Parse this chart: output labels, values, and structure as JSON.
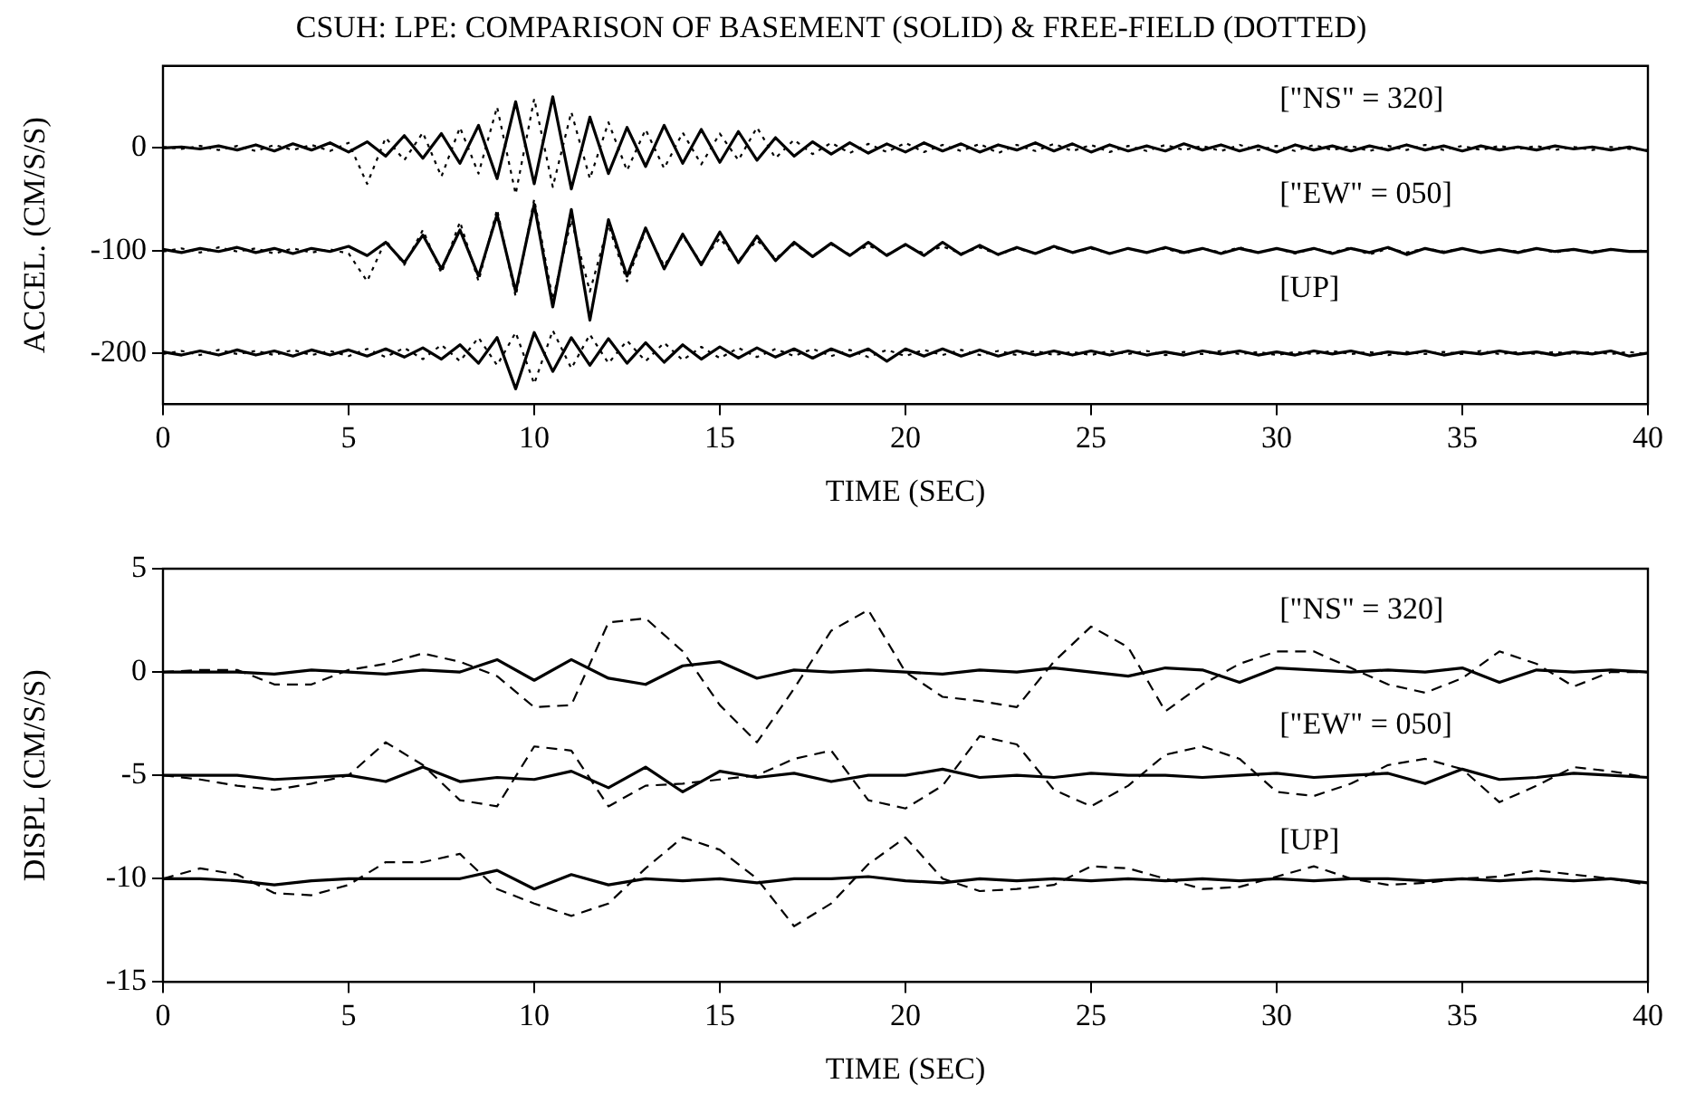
{
  "chart_data": [
    {
      "type": "line",
      "title": "CSUH: LPE: COMPARISON OF BASEMENT (SOLID) & FREE-FIELD (DOTTED)",
      "xlabel": "TIME (SEC)",
      "ylabel": "ACCEL. (CM/S/S)",
      "xlim": [
        0,
        40
      ],
      "xticks": [
        0,
        5,
        10,
        15,
        20,
        25,
        30,
        35,
        40
      ],
      "ylim": [
        -250,
        80
      ],
      "yticks": [
        -200,
        -100,
        0
      ],
      "marker": "none",
      "legend": false,
      "x": [
        0,
        0.5,
        1,
        1.5,
        2,
        2.5,
        3,
        3.5,
        4,
        4.5,
        5,
        5.5,
        6,
        6.5,
        7,
        7.5,
        8,
        8.5,
        9,
        9.5,
        10,
        10.5,
        11,
        11.5,
        12,
        12.5,
        13,
        13.5,
        14,
        14.5,
        15,
        15.5,
        16,
        16.5,
        17,
        17.5,
        18,
        18.5,
        19,
        19.5,
        20,
        20.5,
        21,
        21.5,
        22,
        22.5,
        23,
        23.5,
        24,
        24.5,
        25,
        25.5,
        26,
        26.5,
        27,
        27.5,
        28,
        28.5,
        29,
        29.5,
        30,
        30.5,
        31,
        31.5,
        32,
        32.5,
        33,
        33.5,
        34,
        34.5,
        35,
        35.5,
        36,
        36.5,
        37,
        37.5,
        38,
        38.5,
        39,
        39.5,
        40
      ],
      "series": [
        {
          "color": "#000000",
          "line_style": "solid",
          "values": [
            0,
            1,
            -1,
            2,
            -2,
            3,
            -3,
            4,
            -2,
            5,
            -4,
            6,
            -8,
            12,
            -10,
            14,
            -15,
            22,
            -30,
            45,
            -35,
            50,
            -40,
            30,
            -25,
            20,
            -18,
            22,
            -15,
            18,
            -14,
            16,
            -12,
            10,
            -8,
            6,
            -6,
            5,
            -5,
            4,
            -4,
            5,
            -3,
            4,
            -4,
            3,
            -2,
            5,
            -3,
            4,
            -4,
            3,
            -3,
            2,
            -3,
            4,
            -2,
            3,
            -3,
            2,
            -4,
            3,
            -2,
            2,
            -3,
            2,
            -2,
            3,
            -2,
            2,
            -3,
            2,
            -2,
            1,
            -2,
            2,
            -1,
            1,
            -2,
            1,
            -3
          ]
        },
        {
          "color": "#000000",
          "line_style": "dotted",
          "values": [
            1,
            -1,
            2,
            -2,
            2,
            -3,
            3,
            -2,
            3,
            -3,
            5,
            -35,
            10,
            -12,
            15,
            -28,
            20,
            -25,
            40,
            -45,
            48,
            -38,
            35,
            -30,
            25,
            -22,
            18,
            -20,
            15,
            -16,
            14,
            -12,
            20,
            -10,
            8,
            -6,
            5,
            -5,
            4,
            -4,
            5,
            -4,
            3,
            -3,
            4,
            -5,
            3,
            -3,
            4,
            -3,
            3,
            -4,
            2,
            -3,
            3,
            -2,
            2,
            -3,
            3,
            -2,
            2,
            -3,
            3,
            -2,
            2,
            -3,
            2,
            -2,
            3,
            -2,
            2,
            -2,
            2,
            -1,
            2,
            -2,
            1,
            -2,
            1,
            -1,
            -2
          ]
        },
        {
          "color": "#000000",
          "line_style": "solid",
          "values": [
            -99,
            -102,
            -98,
            -101,
            -97,
            -102,
            -98,
            -103,
            -98,
            -101,
            -96,
            -105,
            -92,
            -112,
            -85,
            -118,
            -80,
            -125,
            -65,
            -140,
            -55,
            -155,
            -60,
            -168,
            -70,
            -125,
            -78,
            -118,
            -84,
            -114,
            -82,
            -112,
            -86,
            -110,
            -92,
            -106,
            -93,
            -105,
            -92,
            -105,
            -94,
            -105,
            -92,
            -104,
            -95,
            -104,
            -97,
            -103,
            -96,
            -102,
            -97,
            -103,
            -98,
            -102,
            -97,
            -102,
            -98,
            -103,
            -98,
            -102,
            -98,
            -102,
            -98,
            -103,
            -98,
            -102,
            -97,
            -104,
            -98,
            -102,
            -98,
            -102,
            -99,
            -102,
            -98,
            -101,
            -99,
            -102,
            -99,
            -101,
            -101
          ]
        },
        {
          "color": "#000000",
          "line_style": "dotted",
          "values": [
            -101,
            -98,
            -102,
            -97,
            -101,
            -98,
            -103,
            -98,
            -102,
            -99,
            -103,
            -130,
            -90,
            -114,
            -80,
            -122,
            -72,
            -130,
            -60,
            -145,
            -50,
            -148,
            -70,
            -140,
            -75,
            -130,
            -80,
            -115,
            -86,
            -112,
            -88,
            -110,
            -90,
            -108,
            -94,
            -105,
            -94,
            -104,
            -95,
            -104,
            -95,
            -103,
            -96,
            -103,
            -97,
            -104,
            -98,
            -103,
            -97,
            -102,
            -98,
            -103,
            -98,
            -102,
            -98,
            -103,
            -98,
            -102,
            -97,
            -102,
            -98,
            -103,
            -98,
            -102,
            -97,
            -104,
            -98,
            -102,
            -98,
            -101,
            -98,
            -102,
            -99,
            -101,
            -98,
            -102,
            -99,
            -101,
            -99,
            -101,
            -100
          ]
        },
        {
          "color": "#000000",
          "line_style": "solid",
          "values": [
            -199,
            -202,
            -198,
            -202,
            -197,
            -202,
            -198,
            -203,
            -197,
            -202,
            -197,
            -203,
            -196,
            -204,
            -195,
            -206,
            -192,
            -210,
            -185,
            -235,
            -180,
            -218,
            -185,
            -212,
            -186,
            -210,
            -190,
            -209,
            -192,
            -206,
            -194,
            -205,
            -195,
            -204,
            -196,
            -205,
            -196,
            -203,
            -196,
            -208,
            -196,
            -203,
            -196,
            -203,
            -197,
            -203,
            -198,
            -202,
            -198,
            -202,
            -198,
            -202,
            -198,
            -202,
            -199,
            -202,
            -198,
            -201,
            -198,
            -202,
            -199,
            -202,
            -198,
            -201,
            -198,
            -202,
            -199,
            -201,
            -198,
            -202,
            -199,
            -201,
            -198,
            -201,
            -199,
            -202,
            -199,
            -201,
            -198,
            -203,
            -200
          ]
        },
        {
          "color": "#000000",
          "line_style": "dotted",
          "values": [
            -201,
            -198,
            -202,
            -197,
            -201,
            -198,
            -202,
            -197,
            -202,
            -198,
            -203,
            -196,
            -204,
            -195,
            -206,
            -192,
            -208,
            -185,
            -212,
            -180,
            -230,
            -178,
            -215,
            -182,
            -210,
            -188,
            -208,
            -190,
            -207,
            -194,
            -205,
            -195,
            -204,
            -196,
            -203,
            -196,
            -203,
            -197,
            -204,
            -197,
            -203,
            -197,
            -202,
            -197,
            -202,
            -198,
            -202,
            -198,
            -202,
            -199,
            -202,
            -198,
            -201,
            -198,
            -202,
            -199,
            -201,
            -198,
            -201,
            -199,
            -202,
            -199,
            -201,
            -198,
            -201,
            -199,
            -202,
            -199,
            -201,
            -199,
            -201,
            -198,
            -201,
            -199,
            -201,
            -199,
            -201,
            -199,
            -201,
            -199,
            -201
          ]
        }
      ],
      "annotations": [
        "[\"NS\" = 320]",
        "[\"EW\" = 050]",
        "[UP]"
      ]
    },
    {
      "type": "line",
      "xlabel": "TIME (SEC)",
      "ylabel": "DISPL (CM/S/S)",
      "xlim": [
        0,
        40
      ],
      "xticks": [
        0,
        5,
        10,
        15,
        20,
        25,
        30,
        35,
        40
      ],
      "ylim": [
        -15,
        5
      ],
      "yticks": [
        -15,
        -10,
        -5,
        0,
        5
      ],
      "marker": "none",
      "legend": false,
      "x": [
        0,
        1,
        2,
        3,
        4,
        5,
        6,
        7,
        8,
        9,
        10,
        11,
        12,
        13,
        14,
        15,
        16,
        17,
        18,
        19,
        20,
        21,
        22,
        23,
        24,
        25,
        26,
        27,
        28,
        29,
        30,
        31,
        32,
        33,
        34,
        35,
        36,
        37,
        38,
        39,
        40
      ],
      "series": [
        {
          "color": "#000000",
          "line_style": "solid",
          "values": [
            0,
            0,
            0,
            -0.1,
            0.1,
            0,
            -0.1,
            0.1,
            0,
            0.6,
            -0.4,
            0.6,
            -0.3,
            -0.6,
            0.3,
            0.5,
            -0.3,
            0.1,
            0,
            0.1,
            0,
            -0.1,
            0.1,
            0,
            0.2,
            0,
            -0.2,
            0.2,
            0.1,
            -0.5,
            0.2,
            0.1,
            0,
            0.1,
            0,
            0.2,
            -0.5,
            0.1,
            0,
            0.1,
            0
          ]
        },
        {
          "color": "#000000",
          "line_style": "dashed",
          "values": [
            0,
            0.1,
            0.1,
            -0.6,
            -0.6,
            0.1,
            0.4,
            0.9,
            0.5,
            -0.2,
            -1.7,
            -1.6,
            2.4,
            2.6,
            1.0,
            -1.6,
            -3.4,
            -0.8,
            2.0,
            3.0,
            0.0,
            -1.2,
            -1.4,
            -1.7,
            0.5,
            2.2,
            1.2,
            -1.9,
            -0.6,
            0.4,
            1.0,
            1.0,
            0.2,
            -0.6,
            -1.0,
            -0.3,
            1.0,
            0.4,
            -0.7,
            0,
            0
          ]
        },
        {
          "color": "#000000",
          "line_style": "solid",
          "values": [
            -5,
            -5,
            -5,
            -5.2,
            -5.1,
            -5,
            -5.3,
            -4.6,
            -5.3,
            -5.1,
            -5.2,
            -4.8,
            -5.6,
            -4.6,
            -5.8,
            -4.8,
            -5.1,
            -4.9,
            -5.3,
            -5,
            -5,
            -4.7,
            -5.1,
            -5,
            -5.1,
            -4.9,
            -5,
            -5,
            -5.1,
            -5,
            -4.9,
            -5.1,
            -5,
            -4.9,
            -5.4,
            -4.7,
            -5.2,
            -5.1,
            -4.9,
            -5,
            -5.1
          ]
        },
        {
          "color": "#000000",
          "line_style": "dashed",
          "values": [
            -5,
            -5.2,
            -5.5,
            -5.7,
            -5.4,
            -5,
            -3.4,
            -4.5,
            -6.2,
            -6.5,
            -3.6,
            -3.8,
            -6.5,
            -5.5,
            -5.4,
            -5.2,
            -5,
            -4.2,
            -3.8,
            -6.2,
            -6.6,
            -5.5,
            -3.1,
            -3.5,
            -5.7,
            -6.5,
            -5.5,
            -4,
            -3.6,
            -4.2,
            -5.8,
            -6,
            -5.4,
            -4.5,
            -4.2,
            -4.7,
            -6.3,
            -5.5,
            -4.6,
            -4.8,
            -5.1
          ]
        },
        {
          "color": "#000000",
          "line_style": "solid",
          "values": [
            -10,
            -10,
            -10.1,
            -10.3,
            -10.1,
            -10,
            -10,
            -10,
            -10,
            -9.6,
            -10.5,
            -9.8,
            -10.3,
            -10,
            -10.1,
            -10,
            -10.2,
            -10,
            -10,
            -9.9,
            -10.1,
            -10.2,
            -10,
            -10.1,
            -10,
            -10.1,
            -10,
            -10.1,
            -10,
            -10.1,
            -10,
            -10.1,
            -10,
            -10,
            -10.1,
            -10,
            -10.1,
            -10,
            -10.1,
            -10,
            -10.2
          ]
        },
        {
          "color": "#000000",
          "line_style": "dashed",
          "values": [
            -10,
            -9.5,
            -9.8,
            -10.7,
            -10.8,
            -10.3,
            -9.2,
            -9.2,
            -8.8,
            -10.5,
            -11.2,
            -11.8,
            -11.2,
            -9.5,
            -8.0,
            -8.6,
            -10.0,
            -12.3,
            -11.2,
            -9.3,
            -8.0,
            -10,
            -10.6,
            -10.5,
            -10.3,
            -9.4,
            -9.5,
            -10,
            -10.5,
            -10.4,
            -9.9,
            -9.4,
            -10,
            -10.3,
            -10.2,
            -10,
            -9.9,
            -9.6,
            -9.8,
            -10,
            -10.3
          ]
        }
      ],
      "annotations": [
        "[\"NS\" = 320]",
        "[\"EW\" = 050]",
        "[UP]"
      ]
    }
  ]
}
